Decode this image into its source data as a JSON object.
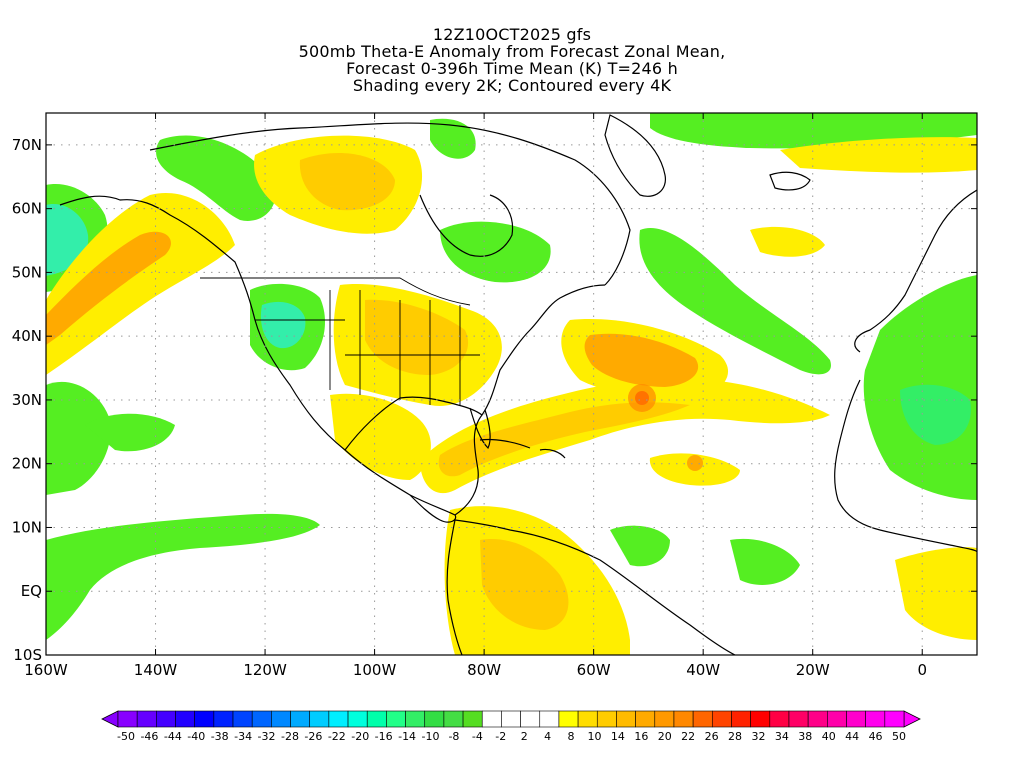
{
  "titles": [
    "12Z10OCT2025 gfs",
    "500mb Theta-E Anomaly from Forecast Zonal Mean,",
    "Forecast 0-396h Time Mean (K) T=246 h",
    "Shading every 2K; Contoured every 4K"
  ],
  "map": {
    "lon_range": [
      -160,
      10
    ],
    "lat_range": [
      -10,
      75
    ],
    "lon_ticks": [
      -160,
      -140,
      -120,
      -100,
      -80,
      -60,
      -40,
      -20,
      0
    ],
    "lon_labels": [
      "160W",
      "140W",
      "120W",
      "100W",
      "80W",
      "60W",
      "40W",
      "20W",
      "0"
    ],
    "lat_ticks": [
      -10,
      0,
      10,
      20,
      30,
      40,
      50,
      60,
      70
    ],
    "lat_labels": [
      "10S",
      "EQ",
      "10N",
      "20N",
      "30N",
      "40N",
      "50N",
      "60N",
      "70N"
    ],
    "grid": "dotted",
    "colors": {
      "green": "#55ee22",
      "light_green": "#33ee66",
      "cyan_green": "#33eeaa",
      "yellow": "#ffee00",
      "gold": "#ffcc00",
      "orange": "#ffaa00",
      "dark_orange": "#ff8800",
      "red": "#ff4400"
    }
  },
  "colorbar": {
    "colors": [
      "#8800ff",
      "#6600ff",
      "#4400ff",
      "#2200ff",
      "#0000ff",
      "#0022ff",
      "#0044ff",
      "#0066ff",
      "#0088ff",
      "#00aaff",
      "#00ccff",
      "#00eeff",
      "#00ffdd",
      "#00ffaa",
      "#22ff88",
      "#33ee66",
      "#33dd44",
      "#44dd44",
      "#55dd22",
      "#ffffff",
      "#ffffff",
      "#ffffff",
      "#ffffff",
      "#ffff00",
      "#ffdd00",
      "#ffcc00",
      "#ffbb00",
      "#ffaa00",
      "#ff9900",
      "#ff8800",
      "#ff6600",
      "#ff4400",
      "#ff2200",
      "#ff0000",
      "#ff0044",
      "#ff0066",
      "#ff0088",
      "#ff00aa",
      "#ff00cc",
      "#ff00ee",
      "#ff00ff"
    ],
    "labels": [
      "-50",
      "-46",
      "-44",
      "-40",
      "-38",
      "-34",
      "-32",
      "-28",
      "-26",
      "-22",
      "-20",
      "-16",
      "-14",
      "-10",
      "-8",
      "-4",
      "-2",
      "2",
      "4",
      "8",
      "10",
      "14",
      "16",
      "20",
      "22",
      "26",
      "28",
      "32",
      "34",
      "38",
      "40",
      "44",
      "46",
      "50"
    ]
  }
}
